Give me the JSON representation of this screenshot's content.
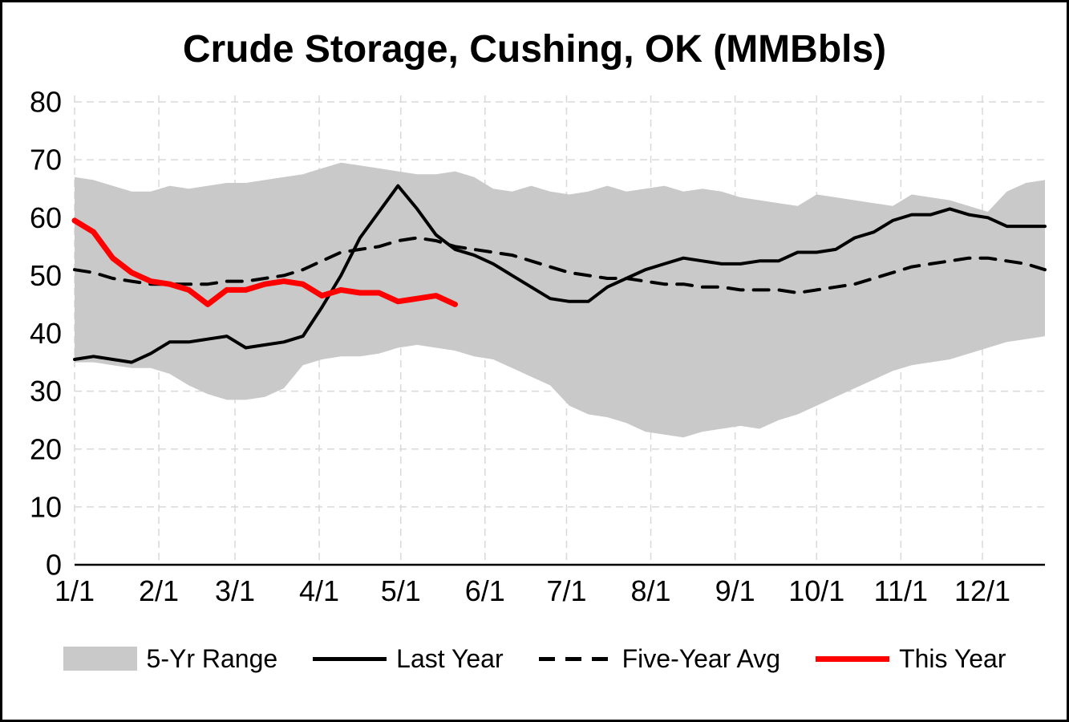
{
  "title": "Crude Storage, Cushing, OK (MMBbls)",
  "legend": {
    "range": "5-Yr Range",
    "last_year": "Last Year",
    "avg": "Five-Year Avg",
    "this_year": "This Year"
  },
  "colors": {
    "band": "#c9c9c9",
    "last_year": "#000000",
    "five_year_avg": "#000000",
    "this_year": "#ff0000",
    "grid": "#d9d9d9",
    "axis": "#000000"
  },
  "chart_data": {
    "type": "line",
    "title": "Crude Storage, Cushing, OK (MMBbls)",
    "x_unit": "day_of_year",
    "x_range": [
      0,
      357
    ],
    "ylim": [
      0,
      80
    ],
    "y_tick_step": 10,
    "y_tick_labels": [
      "0",
      "10",
      "20",
      "30",
      "40",
      "50",
      "60",
      "70",
      "80"
    ],
    "x_ticks": [
      {
        "day": 0,
        "label": "1/1"
      },
      {
        "day": 31,
        "label": "2/1"
      },
      {
        "day": 59,
        "label": "3/1"
      },
      {
        "day": 90,
        "label": "4/1"
      },
      {
        "day": 120,
        "label": "5/1"
      },
      {
        "day": 151,
        "label": "6/1"
      },
      {
        "day": 181,
        "label": "7/1"
      },
      {
        "day": 212,
        "label": "8/1"
      },
      {
        "day": 243,
        "label": "9/1"
      },
      {
        "day": 273,
        "label": "10/1"
      },
      {
        "day": 304,
        "label": "11/1"
      },
      {
        "day": 334,
        "label": "12/1"
      }
    ],
    "grid": "dashed",
    "legend_position": "bottom",
    "band": {
      "name": "5-Yr Range",
      "x_start_day": 0,
      "x_step_days": 7,
      "upper": [
        67,
        66.5,
        65.5,
        64.5,
        64.5,
        65.5,
        65,
        65.5,
        66,
        66,
        66.5,
        67,
        67.5,
        68.5,
        69.5,
        69,
        68.5,
        68,
        67.5,
        67.5,
        68,
        67,
        65,
        64.5,
        65.5,
        64.5,
        64,
        64.5,
        65.5,
        64.5,
        65,
        65.5,
        64.5,
        65,
        64.5,
        63.5,
        63,
        62.5,
        62,
        64,
        63.5,
        63,
        62.5,
        62,
        64,
        63.5,
        63,
        62,
        61,
        64.5,
        66,
        66.5
      ],
      "lower": [
        35,
        35,
        34.5,
        34,
        34,
        33,
        31,
        29.5,
        28.5,
        28.5,
        29,
        30.5,
        34.5,
        35.5,
        36,
        36,
        36.5,
        37.5,
        38,
        37.5,
        37,
        36,
        35.5,
        34,
        32.5,
        31,
        27.5,
        26,
        25.5,
        24.5,
        23,
        22.5,
        22,
        23,
        23.5,
        24,
        23.5,
        25,
        26,
        27.5,
        29,
        30.5,
        32,
        33.5,
        34.5,
        35,
        35.5,
        36.5,
        37.5,
        38.5,
        39,
        39.5
      ]
    },
    "series": [
      {
        "name": "Last Year",
        "style": "solid",
        "color": "#000000",
        "width": 4,
        "x_start_day": 0,
        "x_step_days": 7,
        "values": [
          35.5,
          36,
          35.5,
          35,
          36.5,
          38.5,
          38.5,
          39,
          39.5,
          37.5,
          38,
          38.5,
          39.5,
          44.5,
          50,
          56.5,
          61,
          65.5,
          61.5,
          57,
          54.5,
          53.5,
          52,
          50,
          48,
          46,
          45.5,
          45.5,
          48,
          49.5,
          51,
          52,
          53,
          52.5,
          52,
          52,
          52.5,
          52.5,
          54,
          54,
          54.5,
          56.5,
          57.5,
          59.5,
          60.5,
          60.5,
          61.5,
          60.5,
          60,
          58.5,
          58.5,
          58.5
        ]
      },
      {
        "name": "Five-Year Avg",
        "style": "dashed",
        "color": "#000000",
        "width": 4,
        "x_start_day": 0,
        "x_step_days": 7,
        "values": [
          51,
          50.5,
          49.5,
          49,
          48.5,
          48.5,
          48.5,
          48.5,
          49,
          49,
          49.5,
          50,
          51,
          52.5,
          54,
          54.5,
          55,
          56,
          56.5,
          56,
          55,
          54.5,
          54,
          53.5,
          52.5,
          51.5,
          50.5,
          50,
          49.5,
          49.5,
          49,
          48.5,
          48.5,
          48,
          48,
          47.5,
          47.5,
          47.5,
          47,
          47.5,
          48,
          48.5,
          49.5,
          50.5,
          51.5,
          52,
          52.5,
          53,
          53,
          52.5,
          52,
          51
        ]
      },
      {
        "name": "This Year",
        "style": "solid",
        "color": "#ff0000",
        "width": 7,
        "x_start_day": 0,
        "x_step_days": 7,
        "values": [
          59.5,
          57.5,
          53,
          50.5,
          49,
          48.5,
          47.5,
          45,
          47.5,
          47.5,
          48.5,
          49,
          48.5,
          46.5,
          47.5,
          47,
          47,
          45.5,
          46,
          46.5,
          45
        ]
      }
    ]
  }
}
